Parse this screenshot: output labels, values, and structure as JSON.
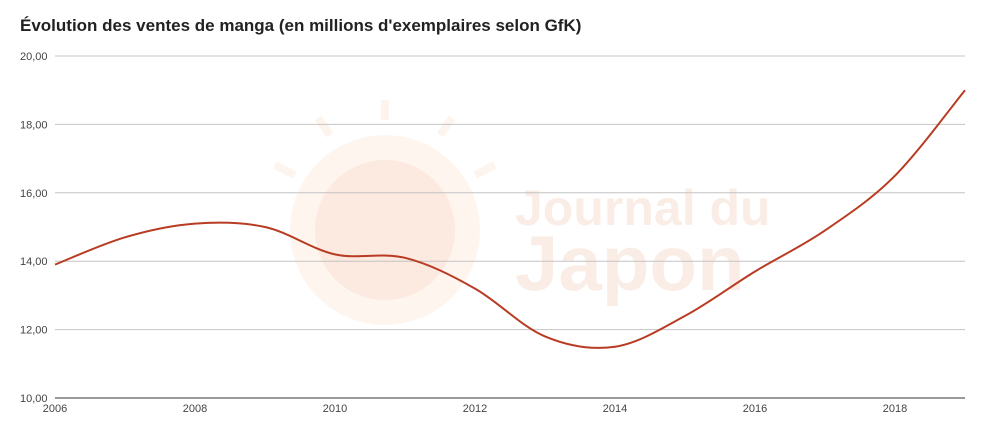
{
  "chart_data": {
    "type": "line",
    "title": "Évolution des ventes de manga (en millions d'exemplaires selon GfK)",
    "xlabel": "",
    "ylabel": "",
    "x": [
      2006,
      2007,
      2008,
      2009,
      2010,
      2011,
      2012,
      2013,
      2014,
      2015,
      2016,
      2017,
      2018,
      2019
    ],
    "series": [
      {
        "values": [
          13.9,
          14.7,
          15.1,
          15.0,
          14.2,
          14.1,
          13.2,
          11.8,
          11.5,
          12.4,
          13.7,
          14.9,
          16.5,
          19.0
        ],
        "color": "#b83b22"
      }
    ],
    "xticks": [
      "2006",
      "2008",
      "2010",
      "2012",
      "2014",
      "2016",
      "2018"
    ],
    "yticks": [
      "10,00",
      "12,00",
      "14,00",
      "16,00",
      "18,00",
      "20,00"
    ],
    "xlim": [
      2006,
      2019
    ],
    "ylim": [
      10,
      20
    ],
    "grid": true,
    "legend": "none"
  },
  "watermark": {
    "line1": "Journal du",
    "line2": "Japon",
    "icon": "rising-sun-logo-icon",
    "color": "#e07a4a"
  }
}
